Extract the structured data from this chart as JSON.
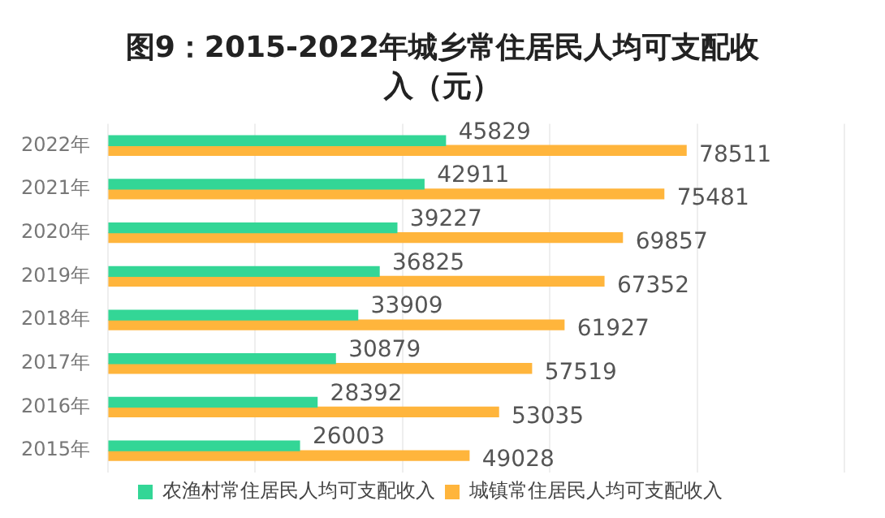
{
  "chart_data": {
    "type": "bar",
    "orientation": "horizontal",
    "title": "图9：2015-2022年城乡常住居民人均可支配收入（元）",
    "categories": [
      "2022年",
      "2021年",
      "2020年",
      "2019年",
      "2018年",
      "2017年",
      "2016年",
      "2015年"
    ],
    "series": [
      {
        "name": "农渔村常住居民人均可支配收入",
        "color": "#33d696",
        "values": [
          45829,
          42911,
          39227,
          36825,
          33909,
          30879,
          28392,
          26003
        ]
      },
      {
        "name": "城镇常住居民人均可支配收入",
        "color": "#ffb53c",
        "values": [
          78511,
          75481,
          69857,
          67352,
          61927,
          57519,
          53035,
          49028
        ]
      }
    ],
    "xlim": [
      0,
      100000
    ],
    "xticks": [
      {
        "value": 0,
        "label": null
      },
      {
        "value": 20000,
        "label": null
      },
      {
        "value": 40000,
        "label": null
      },
      {
        "value": 60000,
        "label": null
      },
      {
        "value": 80000,
        "label": null
      },
      {
        "value": 100000,
        "label": null
      }
    ],
    "tick_labels": "y",
    "grid": "x",
    "legend": "bottom",
    "data_labels": true
  }
}
